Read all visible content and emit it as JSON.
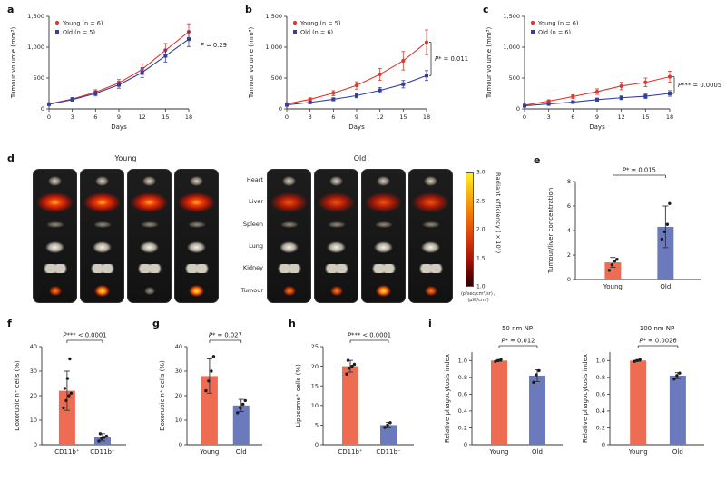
{
  "panels": {
    "a": {
      "letter": "a"
    },
    "b": {
      "letter": "b"
    },
    "c": {
      "letter": "c"
    },
    "d": {
      "letter": "d"
    },
    "e": {
      "letter": "e"
    },
    "f": {
      "letter": "f"
    },
    "g": {
      "letter": "g"
    },
    "h": {
      "letter": "h"
    },
    "i": {
      "letter": "i"
    }
  },
  "colors": {
    "young_line": "#e2362a",
    "old_line": "#32409b",
    "young_bar": "#ee6d52",
    "old_bar": "#6b7abc"
  },
  "panel_d": {
    "group_labels": [
      "Young",
      "Old"
    ],
    "organ_labels": [
      "Heart",
      "Liver",
      "Spleen",
      "Lung",
      "Kidney",
      "Tumour"
    ],
    "colorbar": {
      "tick_labels": [
        "3.0",
        "2.5",
        "2.0",
        "1.5",
        "1.0"
      ],
      "label": "Radiant efficiency (×10⁵)",
      "units": "(p/sec/cm²/sr) / (µW/cm²)"
    }
  },
  "chart_data": [
    {
      "id": "a",
      "type": "line",
      "xlabel": "Days",
      "ylabel": "Tumour volume (mm³)",
      "x": [
        0,
        3,
        6,
        9,
        12,
        15,
        18
      ],
      "ylim": [
        0,
        1500
      ],
      "yticks": [
        0,
        500,
        1000,
        1500
      ],
      "ytick_labels": [
        "0",
        "500",
        "1,000",
        "1,500"
      ],
      "annotation": "P = 0.29",
      "bracket": false,
      "legend_position": "top-left",
      "series": [
        {
          "name": "Young (n = 6)",
          "marker": "circle",
          "color": "#e2362a",
          "values": [
            80,
            160,
            270,
            420,
            640,
            950,
            1250
          ],
          "errors": [
            15,
            25,
            40,
            55,
            85,
            110,
            130
          ]
        },
        {
          "name": "Old (n = 5)",
          "marker": "square",
          "color": "#32409b",
          "values": [
            75,
            150,
            250,
            390,
            590,
            860,
            1130
          ],
          "errors": [
            15,
            25,
            40,
            55,
            80,
            100,
            120
          ]
        }
      ]
    },
    {
      "id": "b",
      "type": "line",
      "xlabel": "Days",
      "ylabel": "Tumour volume (mm³)",
      "x": [
        0,
        3,
        6,
        9,
        12,
        15,
        18
      ],
      "ylim": [
        0,
        1500
      ],
      "yticks": [
        0,
        500,
        1000,
        1500
      ],
      "ytick_labels": [
        "0",
        "500",
        "1,000",
        "1,500"
      ],
      "annotation": "P* = 0.011",
      "bracket": true,
      "legend_position": "top-left",
      "series": [
        {
          "name": "Young (n = 5)",
          "marker": "circle",
          "color": "#e2362a",
          "values": [
            80,
            155,
            255,
            380,
            560,
            780,
            1080
          ],
          "errors": [
            15,
            25,
            40,
            60,
            95,
            150,
            200
          ]
        },
        {
          "name": "Old (n = 6)",
          "marker": "square",
          "color": "#32409b",
          "values": [
            65,
            105,
            155,
            215,
            300,
            400,
            540
          ],
          "errors": [
            10,
            15,
            25,
            35,
            45,
            60,
            80
          ]
        }
      ]
    },
    {
      "id": "c",
      "type": "line",
      "xlabel": "Days",
      "ylabel": "Tumour volume (mm³)",
      "x": [
        0,
        3,
        6,
        9,
        12,
        15,
        18
      ],
      "ylim": [
        0,
        1500
      ],
      "yticks": [
        0,
        500,
        1000,
        1500
      ],
      "ytick_labels": [
        "0",
        "500",
        "1,000",
        "1,500"
      ],
      "annotation": "P*** = 0.0005",
      "bracket": true,
      "legend_position": "top-left",
      "series": [
        {
          "name": "Young (n = 6)",
          "marker": "circle",
          "color": "#e2362a",
          "values": [
            60,
            125,
            200,
            280,
            370,
            430,
            520
          ],
          "errors": [
            10,
            20,
            30,
            45,
            60,
            70,
            90
          ]
        },
        {
          "name": "Old (n = 6)",
          "marker": "square",
          "color": "#32409b",
          "values": [
            50,
            80,
            110,
            150,
            180,
            205,
            250
          ],
          "errors": [
            8,
            12,
            18,
            25,
            30,
            35,
            45
          ]
        }
      ]
    },
    {
      "id": "e",
      "type": "bar",
      "categories": [
        "Young",
        "Old"
      ],
      "values": [
        1.4,
        4.3
      ],
      "errors": [
        0.4,
        1.7
      ],
      "points": [
        [
          0.75,
          1.2,
          1.5,
          1.65
        ],
        [
          3.3,
          3.9,
          4.5,
          6.2
        ]
      ],
      "ylabel": "Tumour/liver concentration",
      "ylim": [
        0,
        8
      ],
      "yticks": [
        0,
        2,
        4,
        6,
        8
      ],
      "ytick_labels": [
        "0",
        "2",
        "4",
        "6",
        "8"
      ],
      "annotation": "P* = 0.015",
      "colors": [
        "#ee6d52",
        "#6b7abc"
      ]
    },
    {
      "id": "f",
      "type": "bar",
      "categories": [
        "CD11b⁺",
        "CD11b⁻"
      ],
      "values": [
        22,
        3
      ],
      "errors": [
        8,
        1.5
      ],
      "points": [
        [
          15,
          18,
          20,
          21,
          23,
          27,
          35
        ],
        [
          1.5,
          2.5,
          3,
          3.5,
          4.5
        ]
      ],
      "ylabel": "Doxorubicin⁺ cells (%)",
      "ylim": [
        0,
        40
      ],
      "yticks": [
        0,
        10,
        20,
        30,
        40
      ],
      "ytick_labels": [
        "0",
        "10",
        "20",
        "30",
        "40"
      ],
      "annotation": "P*** < 0.0001",
      "colors": [
        "#ee6d52",
        "#6b7abc"
      ]
    },
    {
      "id": "g",
      "type": "bar",
      "categories": [
        "Young",
        "Old"
      ],
      "values": [
        28,
        16
      ],
      "errors": [
        7,
        2.5
      ],
      "points": [
        [
          22,
          26,
          30,
          36
        ],
        [
          13,
          15,
          16.5,
          18
        ]
      ],
      "ylabel": "Doxorubicin⁺ cells (%)",
      "ylim": [
        0,
        40
      ],
      "yticks": [
        0,
        10,
        20,
        30,
        40
      ],
      "ytick_labels": [
        "0",
        "10",
        "20",
        "30",
        "40"
      ],
      "annotation": "P* = 0.027",
      "colors": [
        "#ee6d52",
        "#6b7abc"
      ]
    },
    {
      "id": "h",
      "type": "bar",
      "categories": [
        "CD11b⁺",
        "CD11b⁻"
      ],
      "values": [
        20,
        5
      ],
      "errors": [
        1.5,
        0.7
      ],
      "points": [
        [
          18,
          19.5,
          20,
          20.5,
          21.5
        ],
        [
          4.4,
          5,
          5.6
        ]
      ],
      "ylabel": "Liposome⁺ cells (%)",
      "ylim": [
        0,
        25
      ],
      "yticks": [
        0,
        5,
        10,
        15,
        20,
        25
      ],
      "ytick_labels": [
        "0",
        "5",
        "10",
        "15",
        "20",
        "25"
      ],
      "annotation": "P*** < 0.0001",
      "colors": [
        "#ee6d52",
        "#6b7abc"
      ]
    },
    {
      "id": "i_50",
      "type": "bar",
      "title": "50 nm NP",
      "categories": [
        "Young",
        "Old"
      ],
      "values": [
        1.0,
        0.82
      ],
      "errors": [
        0.01,
        0.07
      ],
      "points": [
        [
          0.99,
          1.0,
          1.01
        ],
        [
          0.74,
          0.83,
          0.88
        ]
      ],
      "ylabel": "Relative phagocytosis index",
      "ylim": [
        0,
        1.1
      ],
      "yticks": [
        0,
        0.2,
        0.4,
        0.6,
        0.8,
        1.0
      ],
      "ytick_labels": [
        "0",
        "0.2",
        "0.4",
        "0.6",
        "0.8",
        "1.0"
      ],
      "annotation": "P* = 0.012",
      "colors": [
        "#ee6d52",
        "#6b7abc"
      ]
    },
    {
      "id": "i_100",
      "type": "bar",
      "title": "100 nm NP",
      "categories": [
        "Young",
        "Old"
      ],
      "values": [
        1.0,
        0.82
      ],
      "errors": [
        0.01,
        0.035
      ],
      "points": [
        [
          0.99,
          1.0,
          1.01
        ],
        [
          0.78,
          0.82,
          0.85
        ]
      ],
      "ylabel": "Relative phagocytosis index",
      "ylim": [
        0,
        1.1
      ],
      "yticks": [
        0,
        0.2,
        0.4,
        0.6,
        0.8,
        1.0
      ],
      "ytick_labels": [
        "0",
        "0.2",
        "0.4",
        "0.6",
        "0.8",
        "1.0"
      ],
      "annotation": "P* = 0.0026",
      "colors": [
        "#ee6d52",
        "#6b7abc"
      ]
    }
  ]
}
